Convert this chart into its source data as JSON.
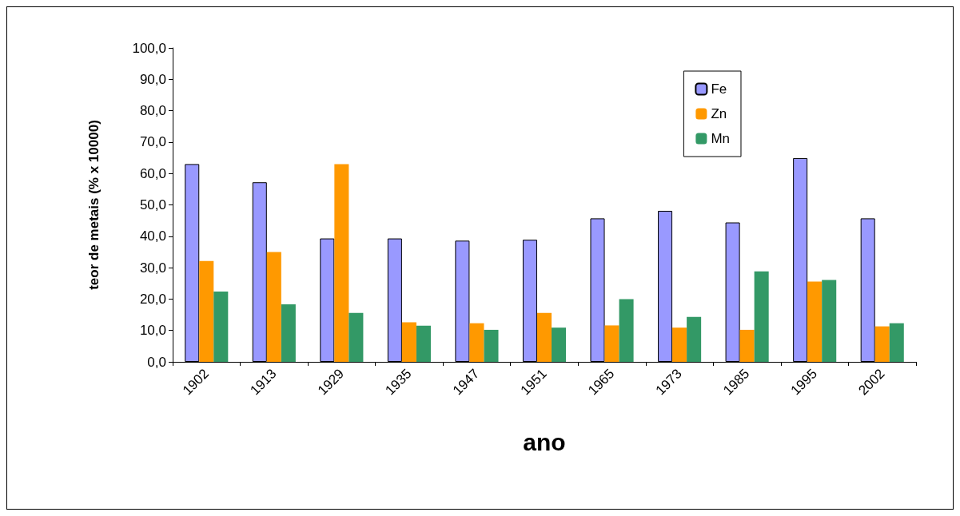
{
  "chart_data": {
    "type": "bar",
    "xlabel": "ano",
    "ylabel": "teor de metais (% x 10000)",
    "categories": [
      "1902",
      "1913",
      "1929",
      "1935",
      "1947",
      "1951",
      "1965",
      "1973",
      "1985",
      "1995",
      "2002"
    ],
    "series": [
      {
        "name": "Fe",
        "color": "#9999ff",
        "values": [
          63.0,
          57.2,
          39.3,
          39.3,
          38.6,
          38.9,
          45.7,
          48.1,
          44.4,
          64.9,
          45.7
        ]
      },
      {
        "name": "Zn",
        "color": "#ff9900",
        "values": [
          32.1,
          35.0,
          63.0,
          12.6,
          12.3,
          15.6,
          11.6,
          10.9,
          10.2,
          25.6,
          11.3
        ]
      },
      {
        "name": "Mn",
        "color": "#339966",
        "values": [
          22.4,
          18.3,
          15.6,
          11.5,
          10.2,
          10.9,
          20.0,
          14.3,
          28.8,
          26.1,
          12.3
        ]
      }
    ],
    "ylim": [
      0,
      100
    ],
    "yticks": [
      {
        "value": 0,
        "label": "0,0"
      },
      {
        "value": 10,
        "label": "10,0"
      },
      {
        "value": 20,
        "label": "20,0"
      },
      {
        "value": 30,
        "label": "30,0"
      },
      {
        "value": 40,
        "label": "40,0"
      },
      {
        "value": 50,
        "label": "50,0"
      },
      {
        "value": 60,
        "label": "60,0"
      },
      {
        "value": 70,
        "label": "70,0"
      },
      {
        "value": 80,
        "label": "80,0"
      },
      {
        "value": 90,
        "label": "90,0"
      },
      {
        "value": 100,
        "label": "100,0"
      }
    ],
    "grid": false,
    "legend": "top right"
  }
}
